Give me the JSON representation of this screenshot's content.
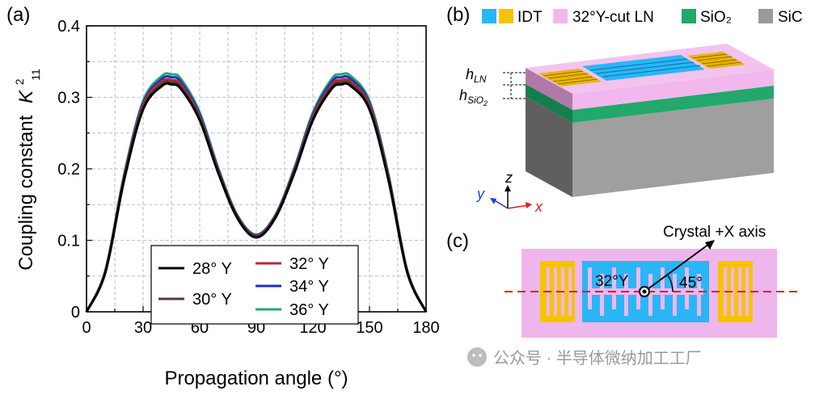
{
  "panels": {
    "a": "(a)",
    "b": "(b)",
    "c": "(c)"
  },
  "chart_data": {
    "type": "line",
    "title": "",
    "xlabel": "Propagation angle (°)",
    "ylabel_prefix": "Coupling constant",
    "ylabel_symbol": "K",
    "ylabel_sup": "2",
    "ylabel_sub": "11",
    "xlim": [
      0,
      180
    ],
    "ylim": [
      0,
      0.4
    ],
    "xticks": [
      0,
      30,
      60,
      90,
      120,
      150,
      180
    ],
    "xtick_labels": [
      "0",
      "30",
      "60",
      "90",
      "120",
      "150",
      "180"
    ],
    "yticks": [
      0,
      0.1,
      0.2,
      0.3,
      0.4
    ],
    "ytick_labels": [
      "0",
      "0.1",
      "0.2",
      "0.3",
      "0.4"
    ],
    "grid": true,
    "legend_position": "bottom-center",
    "x": [
      0,
      10,
      20,
      30,
      40,
      45,
      50,
      60,
      70,
      80,
      90,
      100,
      110,
      120,
      130,
      135,
      140,
      150,
      160,
      170,
      180
    ],
    "series": [
      {
        "name": "28° Y",
        "color": "#000000",
        "values": [
          0.0,
          0.055,
          0.185,
          0.283,
          0.316,
          0.318,
          0.312,
          0.268,
          0.193,
          0.131,
          0.104,
          0.131,
          0.193,
          0.268,
          0.312,
          0.318,
          0.316,
          0.283,
          0.185,
          0.055,
          0.0
        ]
      },
      {
        "name": "30° Y",
        "color": "#5a3a32",
        "values": [
          0.0,
          0.056,
          0.187,
          0.286,
          0.319,
          0.321,
          0.315,
          0.271,
          0.195,
          0.132,
          0.105,
          0.132,
          0.195,
          0.271,
          0.315,
          0.321,
          0.319,
          0.286,
          0.187,
          0.056,
          0.0
        ]
      },
      {
        "name": "32° Y",
        "color": "#c0282d",
        "values": [
          0.0,
          0.056,
          0.189,
          0.289,
          0.322,
          0.324,
          0.318,
          0.273,
          0.196,
          0.133,
          0.106,
          0.133,
          0.196,
          0.273,
          0.318,
          0.324,
          0.322,
          0.289,
          0.189,
          0.056,
          0.0
        ]
      },
      {
        "name": "34° Y",
        "color": "#1f2fc8",
        "values": [
          0.0,
          0.057,
          0.191,
          0.292,
          0.326,
          0.328,
          0.322,
          0.276,
          0.198,
          0.134,
          0.107,
          0.134,
          0.198,
          0.276,
          0.322,
          0.328,
          0.326,
          0.292,
          0.191,
          0.057,
          0.0
        ]
      },
      {
        "name": "36° Y",
        "color": "#22a872",
        "values": [
          0.0,
          0.058,
          0.193,
          0.295,
          0.33,
          0.332,
          0.326,
          0.279,
          0.2,
          0.135,
          0.108,
          0.135,
          0.2,
          0.279,
          0.326,
          0.332,
          0.33,
          0.295,
          0.193,
          0.058,
          0.0
        ]
      }
    ],
    "legend_order": [
      0,
      2,
      4,
      3,
      1
    ]
  },
  "panel_b": {
    "legend": [
      {
        "label": "IDT",
        "colors": [
          "#29b6f6",
          "#f5c400"
        ]
      },
      {
        "label": "32°Y-cut LN",
        "colors": [
          "#f2b8ee"
        ]
      },
      {
        "label": "SiO₂",
        "colors": [
          "#22a86a"
        ]
      },
      {
        "label": "SiC",
        "colors": [
          "#9a9a9a"
        ]
      }
    ],
    "h_ln_main": "h",
    "h_ln_sub": "LN",
    "h_sio2_main": "h",
    "h_sio2_sub": "SiO",
    "h_sio2_subsub": "2",
    "axis_z": "z",
    "axis_y": "y",
    "axis_x": "x"
  },
  "panel_c": {
    "crystal_label": "Crystal +X axis",
    "cut_label": "32°Y",
    "angle_label": "45°"
  },
  "watermark": "公众号 · 半导体微纳加工工厂"
}
